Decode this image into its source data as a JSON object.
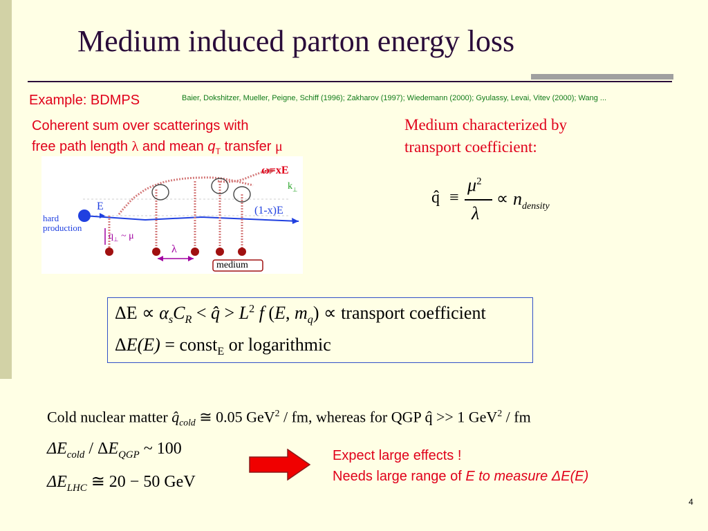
{
  "slide": {
    "title": "Medium induced parton energy loss",
    "page_number": "4",
    "accent_color": "#e0001a",
    "title_color": "#2a0c3a",
    "reference_color": "#0f7a18"
  },
  "header": {
    "example_label": "Example: BDMPS",
    "references": "Baier, Dokshitzer, Mueller, Peigne, Schiff (1996); Zakharov (1997); Wiedemann (2000); Gyulassy, Levai, Vitev (2000); Wang ..."
  },
  "left_text": {
    "line1": "Coherent sum over scatterings with",
    "line2_a": "free path length ",
    "line2_lambda": "λ",
    "line2_b": " and mean ",
    "line2_q": "q",
    "line2_T": "T",
    "line2_c": " transfer ",
    "line2_mu": "μ"
  },
  "right_text": {
    "line1": "Medium characterized by",
    "line2": "transport coefficient:"
  },
  "transport_formula": {
    "lhs": "q̂",
    "equiv": "≡",
    "numerator": "μ",
    "numerator_exp": "2",
    "denominator": "λ",
    "propto": "∝",
    "rhs": "n",
    "rhs_sub": "density"
  },
  "diagram": {
    "omega_label": "ω=xE",
    "k_label": "k",
    "k_sub": "⊥",
    "E_label": "E",
    "oneminusx_label": "(1-x)E",
    "hard_label": "hard",
    "production_label": "production",
    "q_label": "q",
    "q_sub": "⊥",
    "q_sim": " ~ μ",
    "lambda_label": "λ",
    "medium_label": "medium"
  },
  "box": {
    "line1_tail": "transport coefficient",
    "line2_const": "const",
    "line2_const_sub": "E",
    "line2_tail": "or logarithmic"
  },
  "bottom": {
    "line1_prefix": "Cold nuclear matter",
    "line1_qcold_sub": "cold",
    "line1_value": "0.05 GeV",
    "line1_exp": "2",
    "line1_mid": "/ fm, whereas for QGP",
    "line1_qhat": "q̂",
    "line1_gg": ">>",
    "line1_value2": "1 GeV",
    "line1_exp2": "2",
    "line1_end": "/ fm",
    "ratio_sub1": "cold",
    "ratio_sub2": "QGP",
    "ratio_value": "~ 100",
    "lhc_sub": "LHC",
    "lhc_value": "≅ 20 − 50 GeV"
  },
  "callout": {
    "line1": "Expect large effects !",
    "line2_a": "Needs large range of ",
    "line2_b": "E to measure ΔE(E)"
  }
}
